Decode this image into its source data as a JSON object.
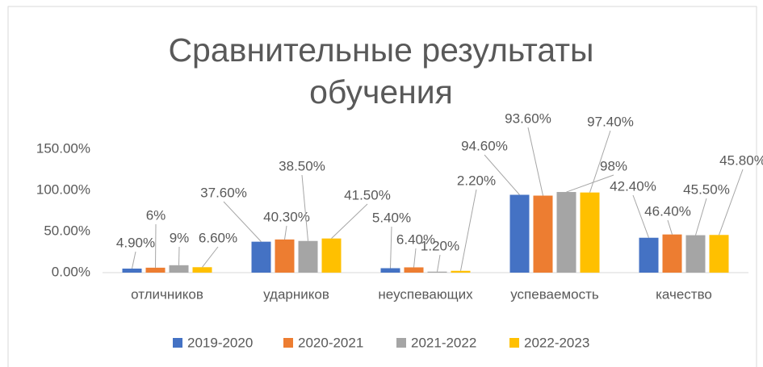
{
  "chart_data": {
    "type": "bar",
    "title": "Сравнительные результаты обучения",
    "categories": [
      "отличников",
      "ударников",
      "неуспевающих",
      "успеваемость",
      "качество"
    ],
    "series": [
      {
        "name": "2019-2020",
        "color": "#4472c4",
        "values": [
          4.9,
          37.6,
          5.4,
          94.6,
          42.4
        ],
        "value_labels": [
          "4.90%",
          "37.60%",
          "5.40%",
          "94.60%",
          "42.40%"
        ]
      },
      {
        "name": "2020-2021",
        "color": "#ed7d31",
        "values": [
          6,
          40.3,
          6.4,
          93.6,
          46.4
        ],
        "value_labels": [
          "6%",
          "40.30%",
          "6.40%",
          "93.60%",
          "46.40%"
        ]
      },
      {
        "name": "2021-2022",
        "color": "#a5a5a5",
        "values": [
          9,
          38.5,
          1.2,
          98,
          45.5
        ],
        "value_labels": [
          "9%",
          "38.50%",
          "1.20%",
          "98%",
          "45.50%"
        ]
      },
      {
        "name": "2022-2023",
        "color": "#ffc000",
        "values": [
          6.6,
          41.5,
          2.2,
          97.4,
          45.8
        ],
        "value_labels": [
          "6.60%",
          "41.50%",
          "2.20%",
          "97.40%",
          "45.80%"
        ]
      }
    ],
    "ylim": [
      0,
      150
    ],
    "yticks": [
      {
        "value": 0,
        "label": "0.00%"
      },
      {
        "value": 50,
        "label": "50.00%"
      },
      {
        "value": 100,
        "label": "100.00%"
      },
      {
        "value": 150,
        "label": "150.00%"
      }
    ],
    "grid": false,
    "legend": "bottom"
  }
}
